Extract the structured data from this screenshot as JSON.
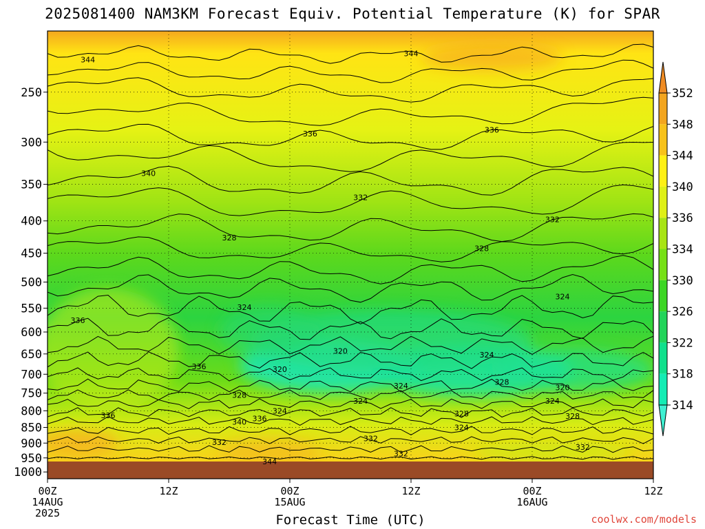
{
  "chart_data": {
    "type": "heatmap",
    "title": "2025081400 NAM3KM Forecast Equiv. Potential Temperature (K) for SPAR",
    "xlabel": "Forecast Time (UTC)",
    "ylabel": "",
    "x_ticks": [
      {
        "hour": 0,
        "labels": [
          "00Z",
          "14AUG",
          "2025"
        ]
      },
      {
        "hour": 12,
        "labels": [
          "12Z"
        ]
      },
      {
        "hour": 24,
        "labels": [
          "00Z",
          "15AUG"
        ]
      },
      {
        "hour": 36,
        "labels": [
          "12Z"
        ]
      },
      {
        "hour": 48,
        "labels": [
          "00Z",
          "16AUG"
        ]
      },
      {
        "hour": 60,
        "labels": [
          "12Z"
        ]
      }
    ],
    "xlim": [
      0,
      60
    ],
    "y_ticks": [
      250,
      300,
      350,
      400,
      450,
      500,
      550,
      600,
      650,
      700,
      750,
      800,
      850,
      900,
      950,
      1000
    ],
    "ylim": [
      200,
      1025
    ],
    "y_scale": "log",
    "grid": true,
    "colorbar": {
      "labels": [
        314,
        318,
        322,
        326,
        330,
        334,
        336,
        340,
        344,
        348,
        352
      ],
      "colors": [
        "#3ff0d2",
        "#14ecb4",
        "#10e08c",
        "#22d45a",
        "#3cd624",
        "#76e016",
        "#a8e414",
        "#dff016",
        "#fff014",
        "#f8c21a",
        "#f3a51f",
        "#f08c24"
      ]
    },
    "contour_labels": [
      {
        "hour": 4.0,
        "p": 222,
        "text": "344"
      },
      {
        "hour": 36.0,
        "p": 217,
        "text": "344"
      },
      {
        "hour": 26.0,
        "p": 291,
        "text": "336"
      },
      {
        "hour": 44.0,
        "p": 287,
        "text": "336"
      },
      {
        "hour": 10.0,
        "p": 336,
        "text": "340"
      },
      {
        "hour": 31.0,
        "p": 367,
        "text": "332"
      },
      {
        "hour": 50.0,
        "p": 398,
        "text": "332"
      },
      {
        "hour": 18.0,
        "p": 425,
        "text": "328"
      },
      {
        "hour": 43.0,
        "p": 442,
        "text": "328"
      },
      {
        "hour": 19.5,
        "p": 548,
        "text": "324"
      },
      {
        "hour": 51.0,
        "p": 527,
        "text": "324"
      },
      {
        "hour": 3.0,
        "p": 575,
        "text": "336"
      },
      {
        "hour": 29.0,
        "p": 643,
        "text": "320"
      },
      {
        "hour": 43.5,
        "p": 652,
        "text": "324"
      },
      {
        "hour": 15.0,
        "p": 680,
        "text": "336"
      },
      {
        "hour": 23.0,
        "p": 687,
        "text": "320"
      },
      {
        "hour": 35.0,
        "p": 730,
        "text": "324"
      },
      {
        "hour": 45.0,
        "p": 720,
        "text": "328"
      },
      {
        "hour": 51.0,
        "p": 735,
        "text": "320"
      },
      {
        "hour": 19.0,
        "p": 755,
        "text": "328"
      },
      {
        "hour": 31.0,
        "p": 772,
        "text": "324"
      },
      {
        "hour": 50.0,
        "p": 772,
        "text": "324"
      },
      {
        "hour": 23.0,
        "p": 800,
        "text": "324"
      },
      {
        "hour": 41.0,
        "p": 808,
        "text": "328"
      },
      {
        "hour": 52.0,
        "p": 815,
        "text": "328"
      },
      {
        "hour": 6.0,
        "p": 813,
        "text": "336"
      },
      {
        "hour": 21.0,
        "p": 823,
        "text": "336"
      },
      {
        "hour": 19.0,
        "p": 833,
        "text": "340"
      },
      {
        "hour": 41.0,
        "p": 850,
        "text": "324"
      },
      {
        "hour": 17.0,
        "p": 897,
        "text": "332"
      },
      {
        "hour": 32.0,
        "p": 885,
        "text": "332"
      },
      {
        "hour": 35.0,
        "p": 935,
        "text": "332"
      },
      {
        "hour": 53.0,
        "p": 913,
        "text": "332"
      },
      {
        "hour": 22.0,
        "p": 962,
        "text": "344"
      }
    ]
  },
  "credit": "coolwx.com/models"
}
